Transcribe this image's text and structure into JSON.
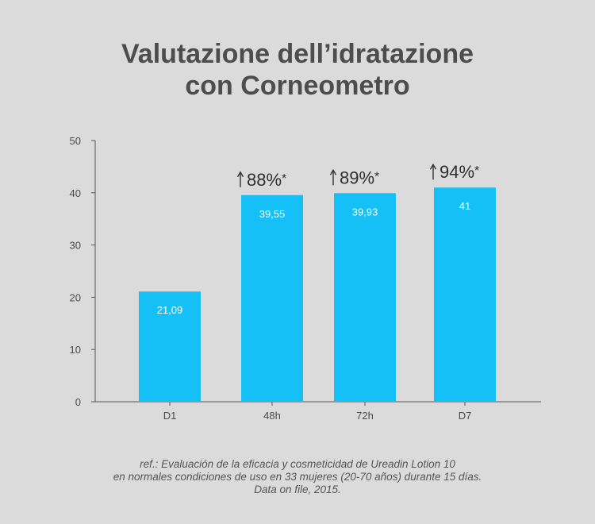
{
  "title": {
    "line1": "Valutazione dell’idratazione",
    "line2": "con Corneometro"
  },
  "colors": {
    "background": "#dbdbdb",
    "bar": "#14c0f5",
    "text": "#4a4a4a",
    "axis": "#555555"
  },
  "chart_data": {
    "type": "bar",
    "categories": [
      "D1",
      "48h",
      "72h",
      "D7"
    ],
    "values": [
      21.09,
      39.55,
      39.93,
      41
    ],
    "data_labels": [
      "21,09",
      "39,55",
      "39,93",
      "41"
    ],
    "annotations": [
      {
        "category": "48h",
        "text": "88%",
        "marker": "*",
        "icon": "up-arrow-icon"
      },
      {
        "category": "72h",
        "text": "89%",
        "marker": "*",
        "icon": "up-arrow-icon"
      },
      {
        "category": "D7",
        "text": "94%",
        "marker": "*",
        "icon": "up-arrow-icon"
      }
    ],
    "ylim": [
      0,
      50
    ],
    "yticks": [
      0,
      10,
      20,
      30,
      40,
      50
    ],
    "xlabel": "",
    "ylabel": "",
    "grid": false,
    "legend": "none"
  },
  "footnote": {
    "line1": "ref.: Evaluación de la eficacia y cosmeticidad de Ureadin Lotion 10",
    "line2": "en normales condiciones de uso en 33 mujeres (20-70 años) durante 15 días.",
    "line3": "Data on file, 2015."
  }
}
